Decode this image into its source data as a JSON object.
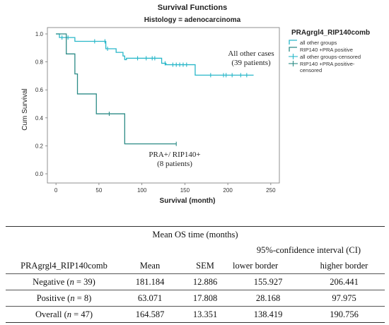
{
  "chart_data": {
    "type": "line",
    "title": "Survival Functions",
    "subtitle": "Histology = adenocarcinoma",
    "xlabel": "Survival (month)",
    "ylabel": "Cum Survival",
    "xlim": [
      -10,
      260
    ],
    "ylim": [
      0,
      1.0
    ],
    "x_ticks": [
      0,
      50,
      100,
      150,
      200,
      250
    ],
    "y_ticks": [
      0.0,
      0.2,
      0.4,
      0.6,
      0.8,
      1.0
    ],
    "y_tick_labels": [
      "0.0",
      "0.2",
      "0.4",
      "0.6",
      "0.8",
      "1.0"
    ],
    "grid": false,
    "legend_title": "PRAgrgl4_RIP140comb",
    "legend_position": "top-right",
    "legend": [
      "all other groups",
      "RIP140 +PRA positive",
      "all other groups-censored",
      "RIP140 +PRA positive-censored"
    ],
    "series": [
      {
        "name": "all other groups",
        "color": "#29b7c9",
        "steps": [
          [
            0,
            1.0
          ],
          [
            4,
            0.974
          ],
          [
            22,
            0.947
          ],
          [
            58,
            0.894
          ],
          [
            70,
            0.868
          ],
          [
            78,
            0.842
          ],
          [
            80,
            0.816
          ],
          [
            82,
            0.826
          ],
          [
            123,
            0.79
          ],
          [
            128,
            0.78
          ],
          [
            162,
            0.705
          ],
          [
            230,
            0.705
          ]
        ],
        "censored_x": [
          7,
          14,
          45,
          57,
          60,
          95,
          105,
          112,
          115,
          127,
          136,
          140,
          144,
          148,
          152,
          180,
          195,
          198,
          205,
          215,
          222
        ]
      },
      {
        "name": "RIP140 +PRA positive",
        "color": "#2c8b86",
        "steps": [
          [
            0,
            1.0
          ],
          [
            12,
            1.0
          ],
          [
            12,
            0.857
          ],
          [
            22,
            0.714
          ],
          [
            25,
            0.571
          ],
          [
            47,
            0.429
          ],
          [
            80,
            0.214
          ],
          [
            140,
            0.214
          ]
        ],
        "censored_x": [
          62,
          140
        ]
      }
    ],
    "annotations": [
      {
        "lines": [
          "All other cases",
          "(39 patients)"
        ]
      },
      {
        "lines": [
          "PRA+/ RIP140+",
          "(8 patients)"
        ]
      }
    ]
  },
  "table": {
    "title": "Mean OS time (months)",
    "ci_header": "95%-confidence interval (CI)",
    "headers": [
      "PRAgrgl4_RIP140comb",
      "Mean",
      "SEM",
      "lower border",
      "higher border"
    ],
    "rows": [
      {
        "label": "Negative",
        "n_text": "(n = 39)",
        "mean": "181.184",
        "sem": "12.886",
        "lower": "155.927",
        "higher": "206.441"
      },
      {
        "label": "Positive",
        "n_text": "(n = 8)",
        "mean": "63.071",
        "sem": "17.808",
        "lower": "28.168",
        "higher": "97.975"
      },
      {
        "label": "Overall",
        "n_text": "(n = 47)",
        "mean": "164.587",
        "sem": "13.351",
        "lower": "138.419",
        "higher": "190.756"
      }
    ]
  }
}
